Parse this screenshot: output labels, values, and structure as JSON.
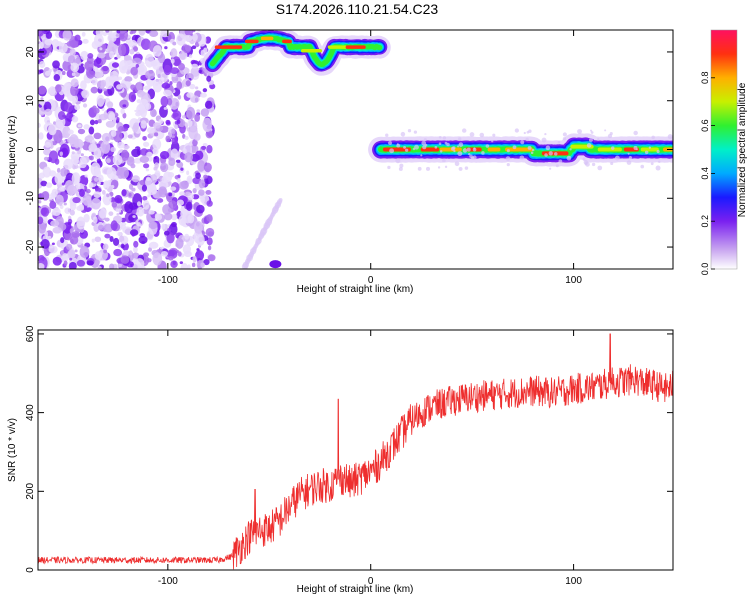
{
  "title": "S174.2026.110.21.54.C23",
  "chart_data": [
    {
      "type": "heatmap",
      "name": "spectrogram",
      "xlabel": "Height of straight line (km)",
      "ylabel": "Frequency (Hz)",
      "xlim": [
        -164,
        149
      ],
      "ylim": [
        -24.5,
        24.5
      ],
      "xticks": [
        -100,
        0,
        100
      ],
      "yticks": [
        -20,
        -10,
        0,
        10,
        20
      ],
      "colorbar": {
        "label": "Normalized spectral amplitude",
        "range": [
          0,
          1
        ],
        "ticks": [
          0.0,
          0.2,
          0.4,
          0.6,
          0.8
        ]
      },
      "features": [
        {
          "name": "diffuse noise region",
          "x_range": [
            -164,
            -78
          ],
          "y_range": [
            -24.5,
            24.5
          ]
        },
        {
          "name": "upper track",
          "x_range": [
            -78,
            5
          ],
          "frequency_hz_approx": 21
        },
        {
          "name": "main track",
          "x_range": [
            5,
            149
          ],
          "frequency_hz_approx": 0
        }
      ]
    },
    {
      "type": "line",
      "name": "snr",
      "xlabel": "Height of straight line (km)",
      "ylabel": "SNR (10 * v/v)",
      "xlim": [
        -164,
        149
      ],
      "ylim": [
        0,
        610
      ],
      "xticks": [
        -100,
        0,
        100
      ],
      "yticks": [
        0,
        200,
        400,
        600
      ],
      "series": [
        {
          "name": "SNR",
          "color": "#ee2e2e",
          "x": [
            -164,
            -150,
            -130,
            -110,
            -90,
            -75,
            -68,
            -64,
            -60,
            -55,
            -50,
            -45,
            -40,
            -35,
            -30,
            -25,
            -20,
            -16,
            -13,
            -10,
            -5,
            0,
            5,
            10,
            15,
            20,
            25,
            30,
            40,
            50,
            60,
            70,
            80,
            90,
            100,
            110,
            118,
            125,
            130,
            135,
            140,
            145,
            149
          ],
          "y": [
            25,
            25,
            25,
            25,
            25,
            25,
            35,
            60,
            85,
            100,
            105,
            125,
            160,
            190,
            205,
            215,
            215,
            230,
            235,
            220,
            235,
            250,
            275,
            310,
            345,
            380,
            400,
            415,
            430,
            440,
            445,
            450,
            455,
            450,
            460,
            465,
            475,
            480,
            485,
            475,
            470,
            460,
            470
          ]
        }
      ],
      "spikes": [
        {
          "x": 118,
          "y": 600
        },
        {
          "x": -16,
          "y": 435
        },
        {
          "x": -57,
          "y": 205
        }
      ]
    }
  ]
}
